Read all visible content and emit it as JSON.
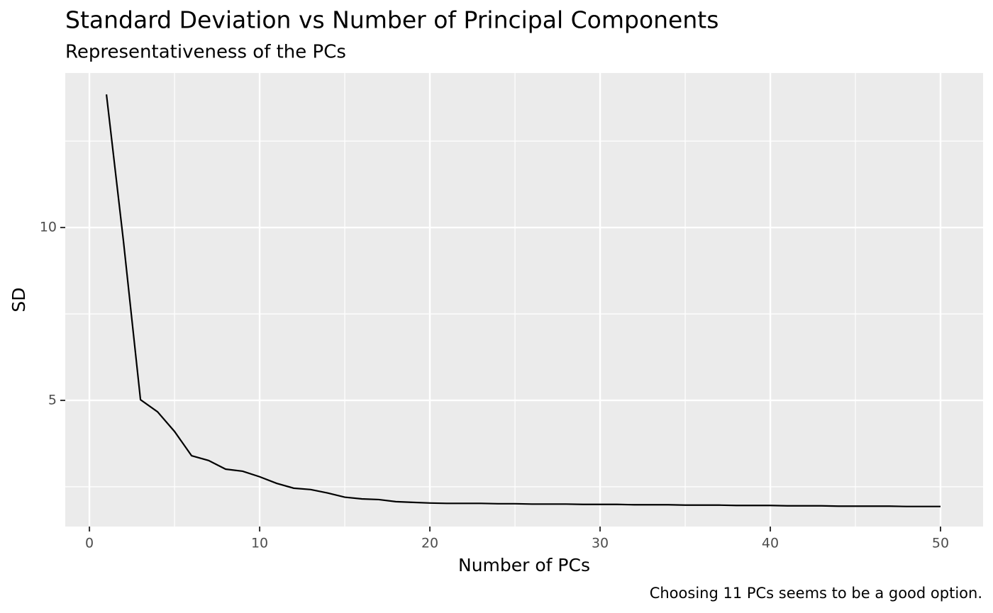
{
  "chart_data": {
    "type": "line",
    "title": "Standard Deviation vs Number of Principal Components",
    "subtitle": "Representativeness of the PCs",
    "x_label": "Number of PCs",
    "y_label": "SD",
    "caption": "Choosing 11 PCs seems to be a good option.",
    "x": [
      1,
      2,
      3,
      4,
      5,
      6,
      7,
      8,
      9,
      10,
      11,
      12,
      13,
      14,
      15,
      16,
      17,
      18,
      19,
      20,
      21,
      22,
      23,
      24,
      25,
      26,
      27,
      28,
      29,
      30,
      31,
      32,
      33,
      34,
      35,
      36,
      37,
      38,
      39,
      40,
      41,
      42,
      43,
      44,
      45,
      46,
      47,
      48,
      49,
      50
    ],
    "series": [
      {
        "name": "SD",
        "color": "#000000",
        "values": [
          13.85,
          9.6,
          5.02,
          4.67,
          4.1,
          3.4,
          3.26,
          3.01,
          2.95,
          2.79,
          2.6,
          2.46,
          2.42,
          2.32,
          2.2,
          2.15,
          2.13,
          2.07,
          2.05,
          2.03,
          2.02,
          2.02,
          2.02,
          2.01,
          2.01,
          2.0,
          2.0,
          2.0,
          1.99,
          1.99,
          1.99,
          1.98,
          1.98,
          1.98,
          1.97,
          1.97,
          1.97,
          1.96,
          1.96,
          1.96,
          1.95,
          1.95,
          1.95,
          1.94,
          1.94,
          1.94,
          1.94,
          1.93,
          1.93,
          1.93
        ]
      }
    ],
    "xlim": [
      -1.42,
      52.5
    ],
    "ylim": [
      1.35,
      14.47
    ],
    "xticks": [
      0,
      10,
      20,
      30,
      40,
      50
    ],
    "yticks": [
      5,
      10
    ],
    "x_minor_ticks": [
      5,
      15,
      25,
      35,
      45
    ],
    "y_minor_ticks": [
      2.5,
      7.5,
      12.5
    ],
    "grid": true,
    "panel_color": "#ebebeb"
  }
}
